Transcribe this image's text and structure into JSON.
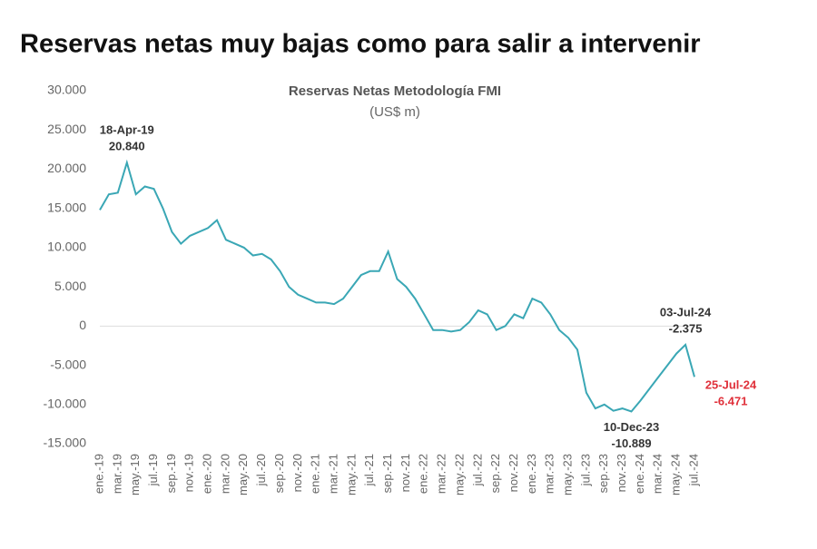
{
  "header": {
    "title": "Reservas netas muy bajas como para salir a intervenir"
  },
  "chart_data": {
    "type": "line",
    "title": "Reservas Netas Metodología FMI",
    "subtitle": "(US$ m)",
    "categories": [
      "ene.-19",
      null,
      "mar.-19",
      null,
      "may.-19",
      null,
      "jul.-19",
      null,
      "sep.-19",
      null,
      "nov.-19",
      null,
      "ene.-20",
      null,
      "mar.-20",
      null,
      "may.-20",
      null,
      "jul.-20",
      null,
      "sep.-20",
      null,
      "nov.-20",
      null,
      "ene.-21",
      null,
      "mar.-21",
      null,
      "may.-21",
      null,
      "jul.-21",
      null,
      "sep.-21",
      null,
      "nov.-21",
      null,
      "ene.-22",
      null,
      "mar.-22",
      null,
      "may.-22",
      null,
      "jul.-22",
      null,
      "sep.-22",
      null,
      "nov.-22",
      null,
      "ene.-23",
      null,
      "mar.-23",
      null,
      "may.-23",
      null,
      "jul.-23",
      null,
      "sep.-23",
      null,
      "nov.-23",
      null,
      "ene.-24",
      null,
      "mar.-24",
      null,
      "may.-24",
      null,
      "jul.-24"
    ],
    "series": [
      {
        "name": "Reservas Netas",
        "color": "#3aa7b5",
        "values": [
          14800,
          16800,
          17000,
          20840,
          16800,
          17800,
          17500,
          15000,
          12000,
          10500,
          11500,
          12000,
          12500,
          13500,
          11000,
          10500,
          10000,
          9000,
          9200,
          8500,
          7000,
          5000,
          4000,
          3500,
          3000,
          3000,
          2800,
          3500,
          5000,
          6500,
          7000,
          7000,
          9500,
          6000,
          5000,
          3500,
          1500,
          -500,
          -500,
          -700,
          -500,
          500,
          2000,
          1500,
          -500,
          0,
          1500,
          1000,
          3500,
          3000,
          1500,
          -500,
          -1500,
          -3000,
          -8500,
          -10500,
          -10000,
          -10800,
          -10500,
          -10889,
          -9500,
          -8000,
          -6500,
          -5000,
          -3500,
          -2375,
          -6471
        ]
      }
    ],
    "ylim": [
      -15000,
      30000
    ],
    "yticks": [
      {
        "value": -15000,
        "label": "-15.000"
      },
      {
        "value": -10000,
        "label": "-10.000"
      },
      {
        "value": -5000,
        "label": "-5.000"
      },
      0,
      {
        "value": 5000,
        "label": "5.000"
      },
      {
        "value": 10000,
        "label": "10.000"
      },
      {
        "value": 15000,
        "label": "15.000"
      },
      {
        "value": 20000,
        "label": "20.000"
      },
      {
        "value": 25000,
        "label": "25.000"
      },
      {
        "value": 30000,
        "label": "30.000"
      }
    ],
    "annotations": [
      {
        "date": "18-Apr-19",
        "value": 20840,
        "value_label": "20.840",
        "color": "#333333",
        "side": "above"
      },
      {
        "date": "10-Dec-23",
        "value": -10889,
        "value_label": "-10.889",
        "color": "#333333",
        "side": "below"
      },
      {
        "date": "03-Jul-24",
        "value": -2375,
        "value_label": "-2.375",
        "color": "#333333",
        "side": "above"
      },
      {
        "date": "25-Jul-24",
        "value": -6471,
        "value_label": "-6.471",
        "color": "#e0303a",
        "side": "right"
      }
    ]
  }
}
